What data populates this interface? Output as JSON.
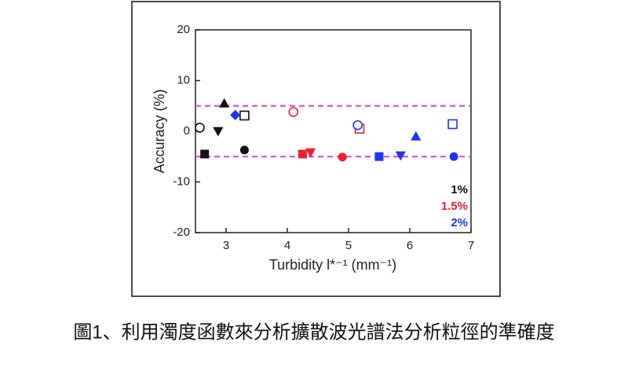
{
  "chart_data": {
    "type": "scatter",
    "x_label": "Turbidity l*⁻¹ (mm⁻¹)",
    "y_label": "Accuracy (%)",
    "caption": "圖1、利用濁度函數來分析擴散波光譜法分析粒徑的準確度",
    "xlim": [
      2.5,
      7
    ],
    "ylim": [
      -20,
      20
    ],
    "xticks": [
      3,
      4,
      5,
      6,
      7
    ],
    "yticks": [
      -20,
      -10,
      0,
      10,
      20
    ],
    "hlines": [
      5,
      -5
    ],
    "hline_color": "#e040e0",
    "series": [
      {
        "name": "1%",
        "color": "#111111",
        "x": [
          2.57,
          2.65,
          2.97,
          2.87,
          3.3,
          3.3
        ],
        "values": [
          0.7,
          -4.5,
          5.5,
          0,
          -3.7,
          3.1
        ],
        "markers": [
          "circle-open",
          "square",
          "triangle-up",
          "triangle-down",
          "circle",
          "square-open"
        ]
      },
      {
        "name": "1.5%",
        "color": "#e8222a",
        "x": [
          4.1,
          4.25,
          4.38,
          4.9,
          5.18
        ],
        "values": [
          3.8,
          -4.5,
          -4.2,
          -5.1,
          0.5
        ],
        "markers": [
          "circle-open",
          "square",
          "triangle-down",
          "circle",
          "square-open"
        ]
      },
      {
        "name": "2%",
        "color": "#2233ee",
        "x": [
          3.15,
          5.15,
          5.5,
          5.85,
          6.1,
          6.7,
          6.72
        ],
        "values": [
          3.2,
          1.2,
          -5,
          -4.8,
          -1,
          1.4,
          -5
        ],
        "markers": [
          "diamond",
          "circle-open",
          "square",
          "triangle-down",
          "triangle-up",
          "square-open",
          "circle"
        ]
      }
    ]
  }
}
